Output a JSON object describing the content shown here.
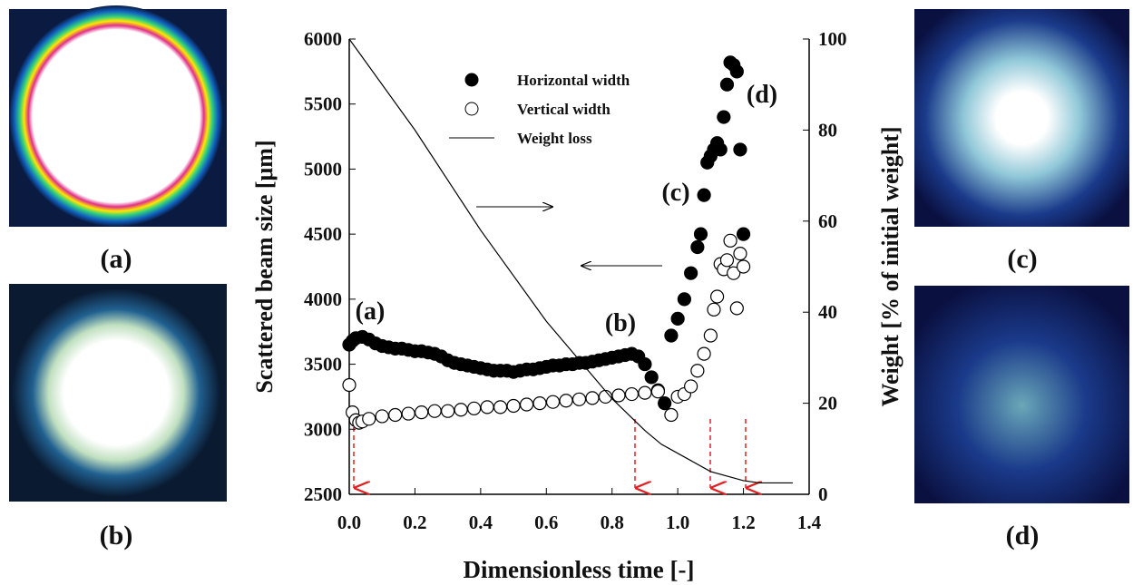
{
  "panels": [
    "(a)",
    "(b)",
    "(c)",
    "(d)"
  ],
  "chart_data": {
    "type": "scatter",
    "xlabel": "Dimensionless time [-]",
    "ylabel": "Scattered beam size [μm]",
    "y2label": "Weight [% of initial weight]",
    "xlim": [
      0,
      1.4
    ],
    "xticks": [
      {
        "value": 0,
        "label": "0.0"
      },
      0.2,
      0.4,
      0.6,
      0.8,
      {
        "value": 1,
        "label": "1.0"
      },
      1.2,
      1.4
    ],
    "ylim": [
      2500,
      6000
    ],
    "yticks": [
      2500,
      3000,
      3500,
      4000,
      4500,
      5000,
      5500,
      6000
    ],
    "y2lim": [
      0,
      100
    ],
    "y2ticks": [
      0,
      20,
      40,
      60,
      80,
      100
    ],
    "annotations": [
      "(a)",
      "(b)",
      "(c)",
      "(d)"
    ],
    "series": [
      {
        "name": "Horizontal width",
        "marker": "filled",
        "color": "#000000",
        "x": [
          0,
          0.01,
          0.02,
          0.04,
          0.06,
          0.08,
          0.1,
          0.12,
          0.14,
          0.16,
          0.18,
          0.2,
          0.22,
          0.24,
          0.26,
          0.28,
          0.3,
          0.32,
          0.34,
          0.36,
          0.38,
          0.4,
          0.42,
          0.44,
          0.46,
          0.48,
          0.5,
          0.52,
          0.54,
          0.56,
          0.58,
          0.6,
          0.62,
          0.64,
          0.66,
          0.68,
          0.7,
          0.72,
          0.74,
          0.76,
          0.78,
          0.8,
          0.82,
          0.84,
          0.86,
          0.88,
          0.9,
          0.92,
          0.94,
          0.96,
          0.98,
          1.0,
          1.02,
          1.04,
          1.06,
          1.07,
          1.08,
          1.09,
          1.1,
          1.11,
          1.12,
          1.13,
          1.14,
          1.15,
          1.16,
          1.17,
          1.18,
          1.19,
          1.2
        ],
        "values": [
          3650,
          3680,
          3700,
          3710,
          3690,
          3660,
          3640,
          3630,
          3620,
          3620,
          3610,
          3600,
          3600,
          3590,
          3580,
          3560,
          3530,
          3510,
          3500,
          3490,
          3480,
          3470,
          3460,
          3450,
          3450,
          3450,
          3440,
          3450,
          3460,
          3460,
          3470,
          3480,
          3490,
          3490,
          3500,
          3500,
          3510,
          3510,
          3520,
          3530,
          3540,
          3550,
          3560,
          3570,
          3580,
          3560,
          3500,
          3400,
          3300,
          3200,
          3720,
          3850,
          4000,
          4200,
          4400,
          4500,
          4800,
          5050,
          5100,
          5150,
          5200,
          5150,
          5400,
          5650,
          5820,
          5800,
          5750,
          5150,
          4500
        ]
      },
      {
        "name": "Vertical width",
        "marker": "open",
        "color": "#000000",
        "x": [
          0,
          0.01,
          0.02,
          0.03,
          0.04,
          0.06,
          0.1,
          0.14,
          0.18,
          0.22,
          0.26,
          0.3,
          0.34,
          0.38,
          0.42,
          0.46,
          0.5,
          0.54,
          0.58,
          0.62,
          0.66,
          0.7,
          0.74,
          0.78,
          0.82,
          0.86,
          0.9,
          0.94,
          0.98,
          1.0,
          1.02,
          1.04,
          1.06,
          1.08,
          1.1,
          1.11,
          1.12,
          1.13,
          1.14,
          1.15,
          1.16,
          1.17,
          1.18,
          1.19,
          1.2
        ],
        "values": [
          3340,
          3130,
          3070,
          3050,
          3060,
          3080,
          3100,
          3110,
          3120,
          3130,
          3140,
          3140,
          3150,
          3160,
          3170,
          3170,
          3180,
          3190,
          3200,
          3210,
          3220,
          3230,
          3240,
          3250,
          3260,
          3270,
          3280,
          3290,
          3110,
          3250,
          3270,
          3330,
          3450,
          3580,
          3720,
          3920,
          4020,
          4270,
          4230,
          4300,
          4450,
          4200,
          3930,
          4350,
          4250
        ]
      },
      {
        "name": "Weight loss",
        "marker": "line",
        "color": "#000000",
        "axis": "y2",
        "x": [
          0,
          0.2,
          0.4,
          0.6,
          0.8,
          0.9,
          0.95,
          1.0,
          1.1,
          1.2,
          1.25,
          1.35
        ],
        "values": [
          100,
          80,
          58,
          38,
          21,
          14,
          11,
          9,
          5,
          3,
          2.5,
          2.5
        ]
      }
    ]
  }
}
